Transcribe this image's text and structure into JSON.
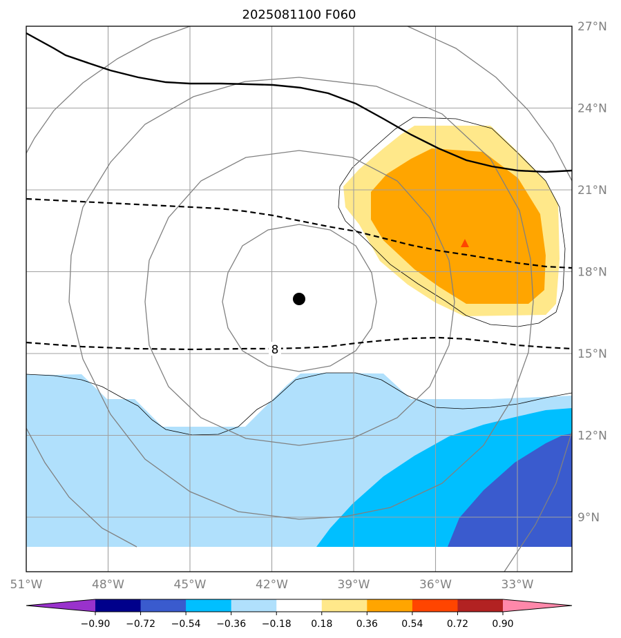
{
  "title": "2025081100 F060",
  "map": {
    "lon_range": [
      -51,
      -31
    ],
    "lat_range": [
      7,
      27
    ],
    "lon_ticks": [
      {
        "value": -51,
        "label": "51°W"
      },
      {
        "value": -48,
        "label": "48°W"
      },
      {
        "value": -45,
        "label": "45°W"
      },
      {
        "value": -42,
        "label": "42°W"
      },
      {
        "value": -39,
        "label": "39°W"
      },
      {
        "value": -36,
        "label": "36°W"
      },
      {
        "value": -33,
        "label": "33°W"
      }
    ],
    "lat_ticks": [
      {
        "value": 27,
        "label": "27°N"
      },
      {
        "value": 24,
        "label": "24°N"
      },
      {
        "value": 21,
        "label": "21°N"
      },
      {
        "value": 18,
        "label": "18°N"
      },
      {
        "value": 15,
        "label": "15°N"
      },
      {
        "value": 12,
        "label": "12°N"
      },
      {
        "value": 9,
        "label": "9°N"
      }
    ],
    "gridlines": true,
    "storm_center": {
      "lon": -41.0,
      "lat": 17.0
    },
    "contour_label": "8"
  },
  "colorbar": {
    "levels": [
      "−0.90",
      "−0.72",
      "−0.54",
      "−0.36",
      "−0.18",
      "0.18",
      "0.36",
      "0.54",
      "0.72",
      "0.90"
    ],
    "colors": [
      "#9932cc",
      "#00008b",
      "#3a5bce",
      "#00bfff",
      "#b0e0fc",
      "#ffffff",
      "#ffe88a",
      "#ffa500",
      "#ff4500",
      "#b22222",
      "#ff88aa"
    ]
  },
  "colors": {
    "light_blue": "#b0e0fc",
    "deep_sky_blue": "#00bfff",
    "royal_blue": "#3a5bce",
    "light_yellow": "#ffe88a",
    "orange": "#ffa500",
    "orange_red": "#ff4500",
    "grid": "#a0a0a0",
    "range_rings": "#808080"
  }
}
